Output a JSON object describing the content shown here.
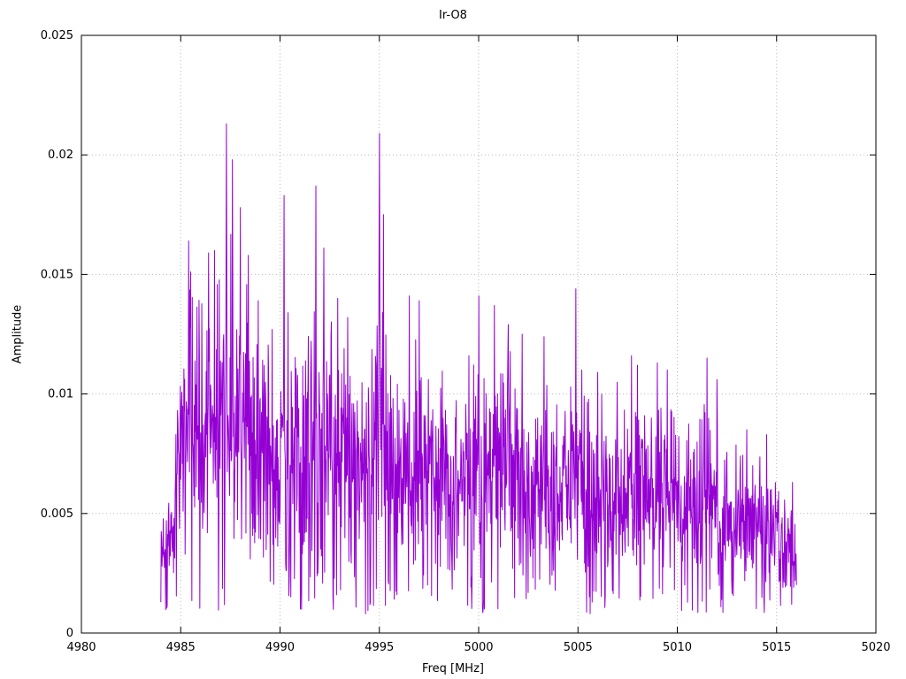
{
  "title": "Ir-O8",
  "axes": {
    "xlabel": "Freq [MHz]",
    "ylabel": "Amplitude",
    "x_ticks": [
      4980,
      4985,
      4990,
      4995,
      5000,
      5005,
      5010,
      5015,
      5020
    ],
    "x_tick_labels": [
      "4980",
      "4985",
      "4990",
      "4995",
      "5000",
      "5005",
      "5010",
      "5015",
      "5020"
    ],
    "y_ticks": [
      0,
      0.005,
      0.01,
      0.015,
      0.02,
      0.025
    ],
    "y_tick_labels": [
      "0",
      "0.005",
      "0.01",
      "0.015",
      "0.02",
      "0.025"
    ],
    "xlim": [
      4980,
      5020
    ],
    "ylim": [
      0,
      0.025
    ],
    "grid_color": "#b8b8b8",
    "border_color": "#000000"
  },
  "chart_data": {
    "type": "line",
    "title": "Ir-O8",
    "xlabel": "Freq [MHz]",
    "ylabel": "Amplitude",
    "xlim": [
      4980,
      5020
    ],
    "ylim": [
      0,
      0.025
    ],
    "grid": true,
    "legend": "none",
    "line_color": "#9400d3",
    "signal_range": [
      4984,
      5016
    ],
    "noise_floor": 0.0008,
    "points": 1600,
    "seed": 1234567,
    "envelope": [
      [
        4984.0,
        0.0048
      ],
      [
        4984.6,
        0.006
      ],
      [
        4985.0,
        0.0125
      ],
      [
        4985.5,
        0.015
      ],
      [
        4986.0,
        0.014
      ],
      [
        4986.5,
        0.0155
      ],
      [
        4987.0,
        0.0165
      ],
      [
        4987.5,
        0.0175
      ],
      [
        4988.0,
        0.016
      ],
      [
        4988.5,
        0.0145
      ],
      [
        4989.0,
        0.0125
      ],
      [
        4989.5,
        0.012
      ],
      [
        4990.0,
        0.014
      ],
      [
        4990.5,
        0.013
      ],
      [
        4991.0,
        0.0115
      ],
      [
        4991.5,
        0.014
      ],
      [
        4992.0,
        0.0155
      ],
      [
        4992.5,
        0.0145
      ],
      [
        4993.0,
        0.014
      ],
      [
        4993.5,
        0.0125
      ],
      [
        4994.0,
        0.0115
      ],
      [
        4994.5,
        0.012
      ],
      [
        4995.0,
        0.0165
      ],
      [
        4995.5,
        0.013
      ],
      [
        4996.0,
        0.0115
      ],
      [
        4996.5,
        0.012
      ],
      [
        4997.0,
        0.0125
      ],
      [
        4997.5,
        0.0115
      ],
      [
        4998.0,
        0.0105
      ],
      [
        4998.5,
        0.01
      ],
      [
        4999.0,
        0.0105
      ],
      [
        4999.5,
        0.01
      ],
      [
        5000.0,
        0.012
      ],
      [
        5000.5,
        0.011
      ],
      [
        5001.0,
        0.0115
      ],
      [
        5001.5,
        0.012
      ],
      [
        5002.0,
        0.0105
      ],
      [
        5002.5,
        0.0095
      ],
      [
        5003.0,
        0.01
      ],
      [
        5003.5,
        0.0105
      ],
      [
        5004.0,
        0.01
      ],
      [
        5004.5,
        0.0105
      ],
      [
        5005.0,
        0.0115
      ],
      [
        5005.5,
        0.01
      ],
      [
        5006.0,
        0.0095
      ],
      [
        5006.5,
        0.01
      ],
      [
        5007.0,
        0.01
      ],
      [
        5007.5,
        0.0105
      ],
      [
        5008.0,
        0.01
      ],
      [
        5008.5,
        0.0095
      ],
      [
        5009.0,
        0.01
      ],
      [
        5009.5,
        0.0105
      ],
      [
        5010.0,
        0.009
      ],
      [
        5010.5,
        0.0085
      ],
      [
        5011.0,
        0.009
      ],
      [
        5011.5,
        0.0095
      ],
      [
        5012.0,
        0.0085
      ],
      [
        5012.5,
        0.0075
      ],
      [
        5013.0,
        0.0072
      ],
      [
        5013.5,
        0.0075
      ],
      [
        5014.0,
        0.0072
      ],
      [
        5014.5,
        0.0068
      ],
      [
        5015.0,
        0.0062
      ],
      [
        5015.5,
        0.0055
      ],
      [
        5016.0,
        0.0045
      ]
    ],
    "notable_peaks": [
      [
        4985.4,
        0.0164
      ],
      [
        4986.4,
        0.0159
      ],
      [
        4986.7,
        0.016
      ],
      [
        4987.3,
        0.0213
      ],
      [
        4987.6,
        0.0198
      ],
      [
        4988.0,
        0.0178
      ],
      [
        4988.4,
        0.0158
      ],
      [
        4988.9,
        0.0139
      ],
      [
        4989.6,
        0.0127
      ],
      [
        4990.2,
        0.0183
      ],
      [
        4990.4,
        0.0134
      ],
      [
        4991.8,
        0.0187
      ],
      [
        4992.2,
        0.0161
      ],
      [
        4992.9,
        0.014
      ],
      [
        4993.4,
        0.0132
      ],
      [
        4995.0,
        0.0209
      ],
      [
        4995.2,
        0.0175
      ],
      [
        4996.5,
        0.0141
      ],
      [
        4997.0,
        0.0139
      ],
      [
        4999.5,
        0.0116
      ],
      [
        5000.0,
        0.0141
      ],
      [
        5000.8,
        0.0137
      ],
      [
        5001.5,
        0.0129
      ],
      [
        5002.2,
        0.0125
      ],
      [
        5003.3,
        0.0124
      ],
      [
        5004.9,
        0.0144
      ],
      [
        5005.2,
        0.011
      ],
      [
        5006.0,
        0.0109
      ],
      [
        5007.7,
        0.0116
      ],
      [
        5008.0,
        0.0112
      ],
      [
        5009.0,
        0.0113
      ],
      [
        5009.5,
        0.011
      ],
      [
        5011.5,
        0.0115
      ],
      [
        5012.0,
        0.0106
      ],
      [
        5013.5,
        0.0085
      ],
      [
        5014.5,
        0.0083
      ],
      [
        5015.8,
        0.0063
      ]
    ]
  }
}
